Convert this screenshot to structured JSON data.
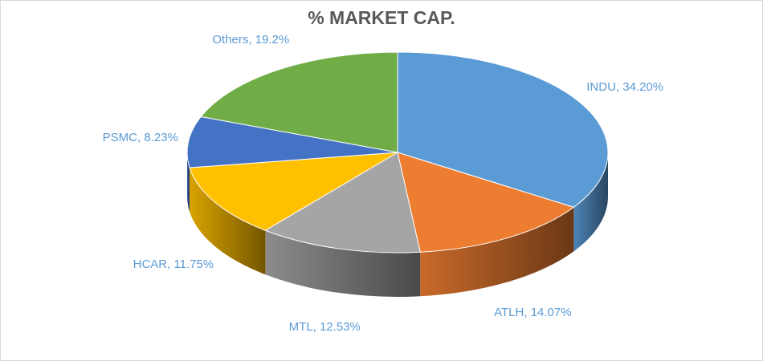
{
  "chart_data": {
    "type": "pie",
    "title": "% MARKET CAP.",
    "values": [
      34.2,
      14.07,
      12.53,
      11.75,
      8.23,
      19.2
    ],
    "value_labels": [
      "INDU, 34.20%",
      "ATLH, 14.07%",
      "MTL, 12.53%",
      "HCAR, 11.75%",
      "PSMC, 8.23%",
      "Others, 19.2%"
    ],
    "colors": [
      "#5b9bd5",
      "#ed7d31",
      "#a5a5a5",
      "#ffc000",
      "#4472c4",
      "#70ad47"
    ]
  }
}
